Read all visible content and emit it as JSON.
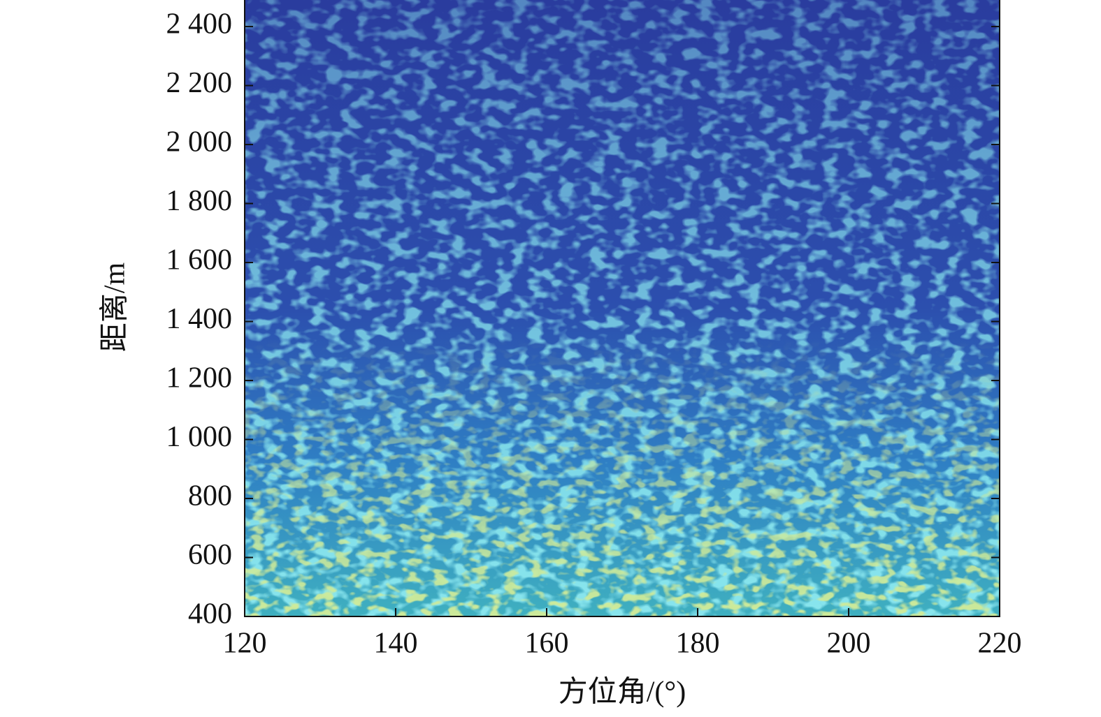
{
  "chart_data": {
    "type": "image",
    "x_label": "方位角/(°)",
    "y_label": "距离/m",
    "xlim": [
      120,
      220
    ],
    "xticks": [
      120,
      140,
      160,
      180,
      200,
      220
    ],
    "ylim": [
      400,
      2490
    ],
    "yticks": [
      400,
      600,
      800,
      {
        "value": 1000,
        "label": "1 000"
      },
      {
        "value": 1200,
        "label": "1 200"
      },
      {
        "value": 1400,
        "label": "1 400"
      },
      {
        "value": 1600,
        "label": "1 600"
      },
      {
        "value": 1800,
        "label": "1 800"
      },
      {
        "value": 2000,
        "label": "2 000"
      },
      {
        "value": 2200,
        "label": "2 200"
      },
      {
        "value": 2400,
        "label": "2 400"
      }
    ]
  }
}
